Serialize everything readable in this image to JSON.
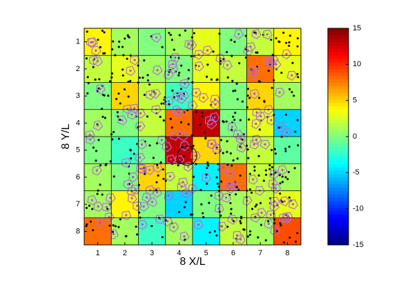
{
  "chart_data": {
    "type": "heatmap",
    "xlabel": "8 X/L",
    "ylabel": "8 Y/L",
    "xlim": [
      0.5,
      8.5
    ],
    "ylim": [
      0.5,
      8.5
    ],
    "xticks": [
      1,
      2,
      3,
      4,
      5,
      6,
      7,
      8
    ],
    "yticks": [
      1,
      2,
      3,
      4,
      5,
      6,
      7,
      8
    ],
    "z": [
      [
        4,
        1,
        0,
        1,
        3,
        0,
        2,
        4
      ],
      [
        2,
        3,
        1,
        0,
        3,
        2,
        8,
        3
      ],
      [
        0,
        5,
        2,
        -2,
        4,
        0,
        5,
        1
      ],
      [
        1,
        0,
        2,
        8,
        13,
        0,
        3,
        -5
      ],
      [
        0,
        -2,
        0,
        13,
        5,
        1,
        2,
        -1
      ],
      [
        1,
        0,
        5,
        2,
        -4,
        8,
        2,
        1
      ],
      [
        1,
        4,
        0,
        -5,
        0,
        1,
        2,
        3
      ],
      [
        8,
        1,
        -2,
        1,
        -4,
        2,
        1,
        9
      ]
    ],
    "clim": [
      -15,
      15
    ],
    "cticks": [
      -15,
      -10,
      -5,
      0,
      5,
      10,
      15
    ],
    "colormap": "jet",
    "grid": true
  }
}
